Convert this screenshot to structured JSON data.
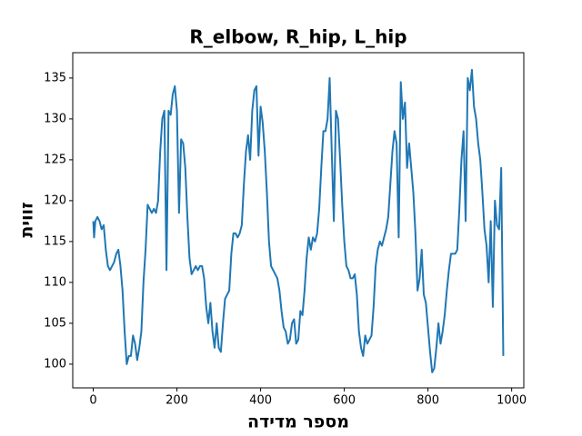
{
  "chart_data": {
    "type": "line",
    "title": "R_elbow, R_hip, L_hip",
    "x_label": "מספר מדידה",
    "y_label": "זווית",
    "x": [
      0,
      2,
      5,
      10,
      15,
      20,
      25,
      30,
      35,
      40,
      45,
      50,
      55,
      60,
      65,
      70,
      75,
      80,
      85,
      90,
      95,
      100,
      105,
      110,
      115,
      120,
      125,
      130,
      135,
      140,
      145,
      150,
      155,
      160,
      165,
      170,
      175,
      180,
      185,
      190,
      195,
      200,
      205,
      210,
      215,
      220,
      225,
      230,
      235,
      240,
      245,
      250,
      255,
      260,
      265,
      270,
      275,
      280,
      285,
      290,
      295,
      300,
      305,
      310,
      315,
      320,
      325,
      330,
      335,
      340,
      345,
      350,
      355,
      360,
      365,
      370,
      375,
      380,
      385,
      390,
      395,
      400,
      405,
      410,
      415,
      420,
      425,
      430,
      435,
      440,
      445,
      450,
      455,
      460,
      465,
      470,
      475,
      480,
      485,
      490,
      495,
      500,
      505,
      510,
      515,
      520,
      525,
      530,
      535,
      540,
      545,
      550,
      555,
      560,
      565,
      570,
      575,
      580,
      585,
      590,
      595,
      600,
      605,
      610,
      615,
      620,
      625,
      630,
      635,
      640,
      645,
      650,
      655,
      660,
      665,
      670,
      675,
      680,
      685,
      690,
      695,
      700,
      705,
      710,
      715,
      720,
      725,
      730,
      735,
      740,
      745,
      750,
      755,
      760,
      765,
      770,
      775,
      780,
      785,
      790,
      795,
      800,
      805,
      810,
      815,
      820,
      825,
      830,
      835,
      840,
      845,
      850,
      855,
      860,
      865,
      870,
      875,
      880,
      885,
      890,
      895,
      900,
      905,
      910,
      915,
      920,
      925,
      930,
      935,
      940,
      945,
      950,
      955,
      960,
      965,
      970,
      975,
      980
    ],
    "series": [
      {
        "name": "R_elbow, R_hip, L_hip",
        "color": "#1f77b4",
        "values": [
          117.5,
          115.5,
          117.5,
          118,
          117.5,
          116.5,
          117,
          114,
          112,
          111.5,
          112,
          112.5,
          113.5,
          114,
          112,
          109,
          104,
          100,
          101,
          101,
          103.5,
          102.5,
          100.5,
          102,
          104,
          110,
          114,
          119.5,
          119,
          118.5,
          119,
          118.5,
          120,
          126,
          130,
          131,
          111.5,
          131,
          130.5,
          133,
          134,
          131,
          118.5,
          127.5,
          127,
          124,
          118,
          113,
          111,
          111.5,
          112,
          111.5,
          112,
          112,
          110.5,
          107,
          105,
          107.5,
          104,
          102,
          105,
          102,
          101.5,
          105,
          108,
          108.5,
          109,
          113.5,
          116,
          116,
          115.5,
          116,
          117,
          122,
          126,
          128,
          125,
          131,
          133.5,
          134,
          125.5,
          131.5,
          129.5,
          126,
          121,
          115,
          112,
          111.5,
          111,
          110.5,
          109,
          106.5,
          104.5,
          104,
          102.5,
          103,
          105,
          105.5,
          102.5,
          103,
          106.5,
          106,
          109,
          113,
          115.5,
          114,
          115.5,
          115,
          116,
          119,
          124,
          128.5,
          128.5,
          130,
          135,
          126,
          117.5,
          131,
          130,
          125,
          119.5,
          115,
          112,
          111.5,
          110.5,
          110.5,
          111,
          108.5,
          104,
          102,
          101,
          103.5,
          102.5,
          103,
          103.5,
          107,
          112,
          114,
          115,
          114.5,
          115.5,
          116.5,
          118,
          122,
          126,
          128.5,
          127,
          115.5,
          134.5,
          130,
          132,
          124,
          127,
          124,
          121,
          116,
          109,
          110.5,
          114,
          108.5,
          107.5,
          104.5,
          101.5,
          99,
          99.5,
          102,
          105,
          102.5,
          104,
          106,
          109,
          111.5,
          113.5,
          113.5,
          113.5,
          114,
          119,
          125,
          128.5,
          117.5,
          135,
          133.5,
          136,
          131.5,
          130,
          127,
          125,
          121,
          116.5,
          114.5,
          110,
          117.5,
          107,
          120,
          117,
          116.5,
          124,
          101
        ]
      }
    ],
    "xlim": [
      -49,
      1029
    ],
    "ylim": [
      97.1,
      138.1
    ],
    "xticks": [
      0,
      200,
      400,
      600,
      800,
      1000
    ],
    "yticks": [
      100,
      105,
      110,
      115,
      120,
      125,
      130,
      135
    ]
  }
}
